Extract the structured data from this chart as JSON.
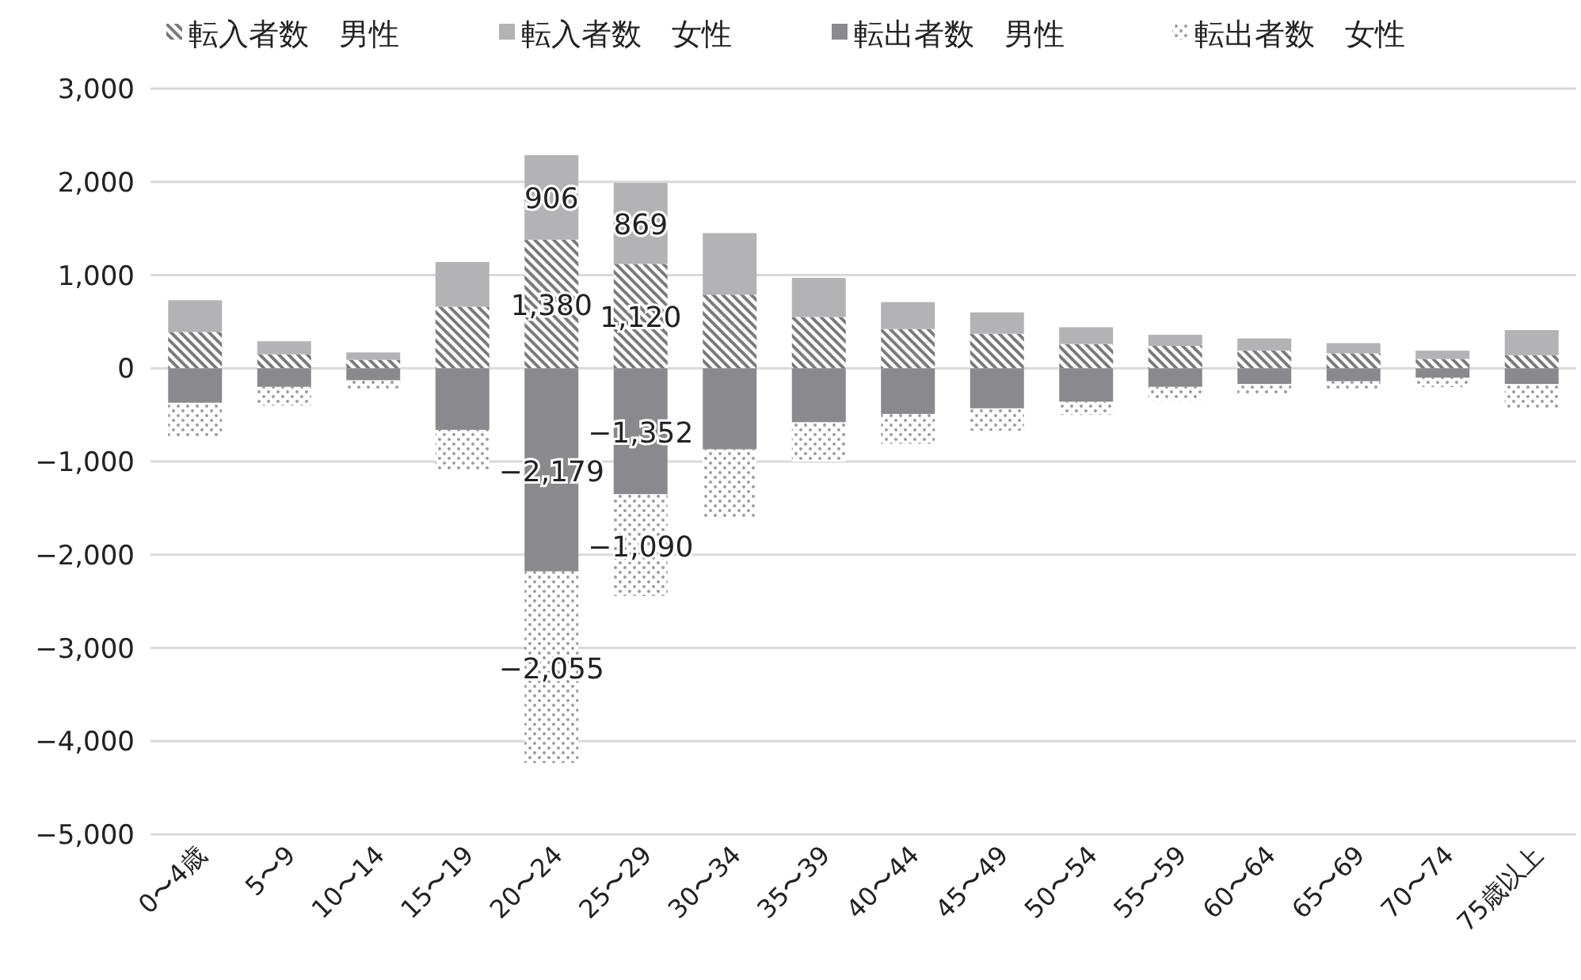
{
  "chart_data": {
    "type": "bar",
    "stacked": true,
    "legend": "top",
    "grid": "y",
    "categories": [
      "0〜4歳",
      "5〜9",
      "10〜14",
      "15〜19",
      "20〜24",
      "25〜29",
      "30〜34",
      "35〜39",
      "40〜44",
      "45〜49",
      "50〜54",
      "55〜59",
      "60〜64",
      "65〜69",
      "70〜74",
      "75歳以上"
    ],
    "ylim": [
      -5000,
      3000
    ],
    "yticks": [
      {
        "value": -5000,
        "label": "−5,000"
      },
      {
        "value": -4000,
        "label": "−4,000"
      },
      {
        "value": -3000,
        "label": "−3,000"
      },
      {
        "value": -2000,
        "label": "−2,000"
      },
      {
        "value": -1000,
        "label": "−1,000"
      },
      {
        "value": 0,
        "label": "0"
      },
      {
        "value": 1000,
        "label": "1,000"
      },
      {
        "value": 2000,
        "label": "2,000"
      },
      {
        "value": 3000,
        "label": "3,000"
      }
    ],
    "series": [
      {
        "name": "転入者数　男性",
        "color": "#7a7a7e",
        "values": [
          390,
          150,
          90,
          660,
          1380,
          1120,
          790,
          550,
          420,
          370,
          260,
          240,
          190,
          160,
          100,
          140
        ],
        "value_labels": [
          null,
          null,
          null,
          null,
          "1,380",
          "1,120",
          null,
          null,
          null,
          null,
          null,
          null,
          null,
          null,
          null,
          null
        ]
      },
      {
        "name": "転入者数　女性",
        "color": "#b3b3b6",
        "values": [
          340,
          140,
          80,
          480,
          906,
          869,
          660,
          420,
          290,
          230,
          180,
          120,
          130,
          110,
          90,
          270
        ],
        "value_labels": [
          null,
          null,
          null,
          null,
          "906",
          "869",
          null,
          null,
          null,
          null,
          null,
          null,
          null,
          null,
          null,
          null
        ]
      },
      {
        "name": "転出者数　男性",
        "color": "#8a8a8e",
        "values": [
          -370,
          -200,
          -130,
          -660,
          -2179,
          -1352,
          -870,
          -580,
          -490,
          -430,
          -360,
          -200,
          -170,
          -140,
          -100,
          -170
        ],
        "value_labels": [
          null,
          null,
          null,
          null,
          "−2,179",
          "−1,352",
          null,
          null,
          null,
          null,
          null,
          null,
          null,
          null,
          null,
          null
        ]
      },
      {
        "name": "転出者数　女性",
        "color": "#9c9c9c",
        "values": [
          -360,
          -200,
          -100,
          -440,
          -2055,
          -1090,
          -730,
          -420,
          -320,
          -240,
          -140,
          -140,
          -100,
          -90,
          -100,
          -270
        ],
        "value_labels": [
          null,
          null,
          null,
          null,
          "−2,055",
          "−1,090",
          null,
          null,
          null,
          null,
          null,
          null,
          null,
          null,
          null,
          null
        ]
      }
    ]
  }
}
